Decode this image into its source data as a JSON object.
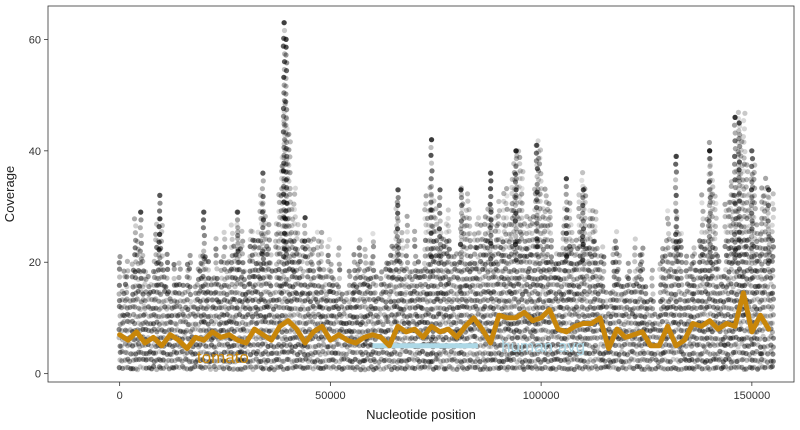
{
  "chart_data": {
    "type": "scatter",
    "title": "",
    "xlabel": "Nucleotide position",
    "ylabel": "Coverage",
    "xlim": [
      -17000,
      160000
    ],
    "ylim": [
      -1.5,
      66
    ],
    "x_ticks": [
      0,
      50000,
      100000,
      150000
    ],
    "y_ticks": [
      0,
      20,
      40,
      60
    ],
    "x_tick_labels": [
      "0",
      "50000",
      "100000",
      "150000"
    ],
    "y_tick_labels": [
      "0",
      "20",
      "40",
      "60"
    ],
    "grid": false,
    "legend": "none",
    "point_color": "#000000",
    "point_alpha": 0.25,
    "points_summary": "dense semi-transparent coverage points per position, mostly 0-25",
    "peaks": [
      {
        "x": 5000,
        "y": 29
      },
      {
        "x": 9500,
        "y": 32
      },
      {
        "x": 20000,
        "y": 29
      },
      {
        "x": 28000,
        "y": 29
      },
      {
        "x": 34000,
        "y": 36
      },
      {
        "x": 39000,
        "y": 63
      },
      {
        "x": 39500,
        "y": 60
      },
      {
        "x": 44000,
        "y": 28
      },
      {
        "x": 66000,
        "y": 33
      },
      {
        "x": 74000,
        "y": 42
      },
      {
        "x": 76000,
        "y": 33
      },
      {
        "x": 81000,
        "y": 33
      },
      {
        "x": 88000,
        "y": 36
      },
      {
        "x": 94000,
        "y": 40
      },
      {
        "x": 99000,
        "y": 41
      },
      {
        "x": 106000,
        "y": 35
      },
      {
        "x": 110000,
        "y": 33
      },
      {
        "x": 132000,
        "y": 39
      },
      {
        "x": 140000,
        "y": 40
      },
      {
        "x": 146000,
        "y": 46
      },
      {
        "x": 147000,
        "y": 45
      },
      {
        "x": 150000,
        "y": 40
      },
      {
        "x": 154000,
        "y": 33
      }
    ],
    "series": [
      {
        "name": "tomato",
        "type": "line",
        "color": "#c8860a",
        "x": [
          0,
          2000,
          4000,
          6000,
          8000,
          10000,
          12000,
          14000,
          16000,
          18000,
          20000,
          22000,
          24000,
          26000,
          28000,
          30000,
          32000,
          34000,
          36000,
          38000,
          40000,
          42000,
          44000,
          46000,
          48000,
          50000,
          52000,
          54000,
          56000,
          58000,
          60000,
          62000,
          64000,
          66000,
          68000,
          70000,
          72000,
          74000,
          76000,
          78000,
          80000,
          82000,
          84000,
          86000,
          88000,
          90000,
          92000,
          94000,
          96000,
          98000,
          100000,
          102000,
          104000,
          106000,
          108000,
          110000,
          112000,
          114000,
          116000,
          118000,
          120000,
          122000,
          124000,
          126000,
          128000,
          130000,
          132000,
          134000,
          136000,
          138000,
          140000,
          142000,
          144000,
          146000,
          148000,
          150000,
          152000,
          154000
        ],
        "y": [
          7,
          6,
          7.5,
          5.5,
          6.5,
          5,
          7,
          6,
          4.5,
          6.5,
          6,
          7.5,
          6.5,
          7,
          6,
          5.5,
          8,
          7,
          6,
          8.5,
          9.5,
          8,
          5.5,
          7.5,
          8.5,
          6,
          7,
          6,
          5.5,
          6.5,
          7,
          6.5,
          5,
          8.5,
          7.5,
          8,
          6.5,
          8.5,
          7.5,
          8,
          6.5,
          8.5,
          10,
          8,
          5.5,
          10.5,
          10,
          10,
          11,
          9.5,
          10,
          11.5,
          8,
          7.5,
          8.5,
          9,
          9,
          10,
          4.5,
          8,
          6.5,
          7,
          7.5,
          5,
          5,
          8.5,
          5,
          6,
          9,
          8.5,
          9.5,
          8,
          9,
          8.5,
          14.5,
          7.5,
          10.5,
          8
        ]
      },
      {
        "name": "human avg",
        "type": "line",
        "color": "#add8e6",
        "x": [
          60000,
          85000
        ],
        "y": [
          5,
          5
        ]
      }
    ],
    "annotations": [
      {
        "text": "tomato",
        "color": "#c8860a",
        "x": 24500,
        "y": 3
      },
      {
        "text": "human avg",
        "color": "#add8e6",
        "x": 100500,
        "y": 5
      }
    ]
  }
}
